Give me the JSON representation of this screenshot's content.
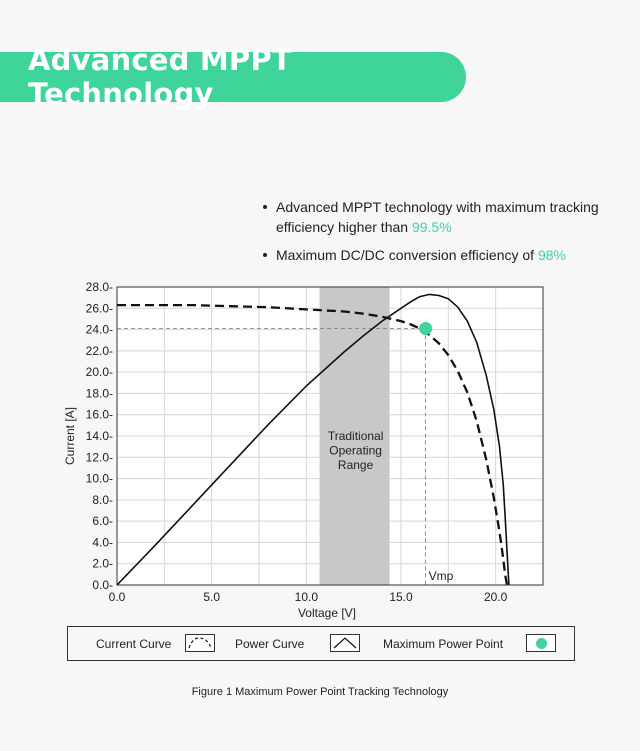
{
  "header": {
    "title": "Advanced MPPT Technology"
  },
  "bullets": [
    {
      "text": "Advanced MPPT technology with maximum tracking efficiency higher than ",
      "highlight": "99.5%"
    },
    {
      "text": "Maximum DC/DC conversion efficiency of ",
      "highlight": "98%"
    }
  ],
  "colors": {
    "accent": "#3ed49a",
    "band": "#c8c8c8",
    "grid": "#d6d6d6"
  },
  "chart_data": {
    "type": "line",
    "xlabel": "Voltage [V]",
    "ylabel": "Current [A]",
    "xlim": [
      0,
      22.5
    ],
    "ylim": [
      0,
      28
    ],
    "x_ticks": [
      0,
      5,
      10,
      15,
      20
    ],
    "x_tick_labels": [
      "0.0",
      "5.0",
      "10.0",
      "15.0",
      "20.0"
    ],
    "y_ticks": [
      0,
      2,
      4,
      6,
      8,
      10,
      12,
      14,
      16,
      18,
      20,
      22,
      24,
      26,
      28
    ],
    "y_tick_labels": [
      "0.0-",
      "2.0-",
      "4.0-",
      "6.0-",
      "8.0-",
      "10.0-",
      "12.0-",
      "14.0-",
      "16.0-",
      "18.0-",
      "20.0-",
      "22.0-",
      "24.0-",
      "26.0-",
      "28.0-"
    ],
    "grid": true,
    "series": [
      {
        "name": "Current Curve",
        "style": "dashed",
        "x": [
          0,
          2,
          4,
          6,
          8,
          10,
          12,
          13,
          14,
          15,
          15.5,
          16,
          16.5,
          17,
          17.5,
          18,
          18.5,
          19,
          19.5,
          19.9,
          20.2,
          20.4,
          20.5,
          20.6
        ],
        "y": [
          26.3,
          26.3,
          26.3,
          26.2,
          26.1,
          25.9,
          25.7,
          25.5,
          25.2,
          24.8,
          24.5,
          24.1,
          23.5,
          22.7,
          21.6,
          20.1,
          18.1,
          15.4,
          11.8,
          8.2,
          5.0,
          2.5,
          1.0,
          0
        ]
      },
      {
        "name": "Power Curve",
        "style": "solid",
        "x": [
          0,
          2,
          4,
          6,
          8,
          10,
          12,
          13,
          14,
          15,
          15.5,
          16,
          16.5,
          17,
          17.5,
          18,
          18.5,
          19,
          19.5,
          19.9,
          20.2,
          20.4,
          20.5,
          20.6,
          20.7
        ],
        "y": [
          0,
          3.7,
          7.5,
          11.3,
          15.1,
          18.7,
          21.9,
          23.4,
          24.8,
          26.0,
          26.6,
          27.1,
          27.3,
          27.2,
          26.9,
          26.1,
          24.8,
          22.8,
          19.7,
          16.5,
          13.0,
          9.5,
          6.5,
          3.2,
          0
        ]
      }
    ],
    "band": {
      "x": [
        10.7,
        14.4
      ],
      "label": [
        "Traditional",
        "Operating",
        "Range"
      ]
    },
    "mpp": {
      "x": 16.3,
      "y": 24.1,
      "label": "Vmp"
    }
  },
  "legend": {
    "current_curve": "Current Curve",
    "power_curve": "Power Curve",
    "max_power_point": "Maximum Power Point"
  },
  "caption": "Figure 1 Maximum Power Point Tracking Technology"
}
